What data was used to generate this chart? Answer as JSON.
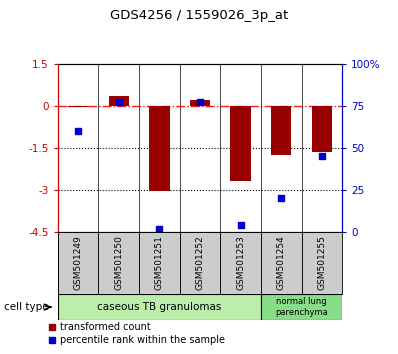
{
  "title": "GDS4256 / 1559026_3p_at",
  "categories": [
    "GSM501249",
    "GSM501250",
    "GSM501251",
    "GSM501252",
    "GSM501253",
    "GSM501254",
    "GSM501255"
  ],
  "red_values": [
    -0.05,
    0.35,
    -3.05,
    0.2,
    -2.7,
    -1.75,
    -1.65
  ],
  "blue_values_pct": [
    60,
    77,
    2,
    77,
    4,
    20,
    45
  ],
  "ylim_left": [
    -4.5,
    1.5
  ],
  "ylim_right": [
    0,
    100
  ],
  "yticks_left": [
    1.5,
    0,
    -1.5,
    -3,
    -4.5
  ],
  "yticks_right": [
    100,
    75,
    50,
    25,
    0
  ],
  "ytick_labels_left": [
    "1.5",
    "0",
    "-1.5",
    "-3",
    "-4.5"
  ],
  "ytick_labels_right": [
    "100%",
    "75",
    "50",
    "25",
    "0"
  ],
  "hlines": [
    -1.5,
    -3.0
  ],
  "dashed_hline": 0,
  "bar_color": "#990000",
  "dot_color": "#0000cc",
  "cell_group1_label": "caseous TB granulomas",
  "cell_group1_color": "#bbeeaa",
  "cell_group1_n": 5,
  "cell_group2_label": "normal lung\nparenchyma",
  "cell_group2_color": "#88dd88",
  "cell_group2_n": 2,
  "legend_bar_label": "transformed count",
  "legend_dot_label": "percentile rank within the sample",
  "cell_type_label": "cell type",
  "axis_left_color": "#cc0000",
  "axis_right_color": "#0000cc",
  "bar_width": 0.5,
  "dot_size": 18
}
